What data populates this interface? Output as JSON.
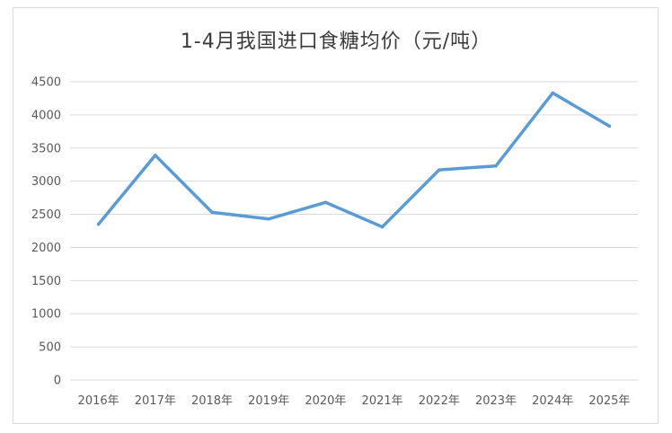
{
  "chart_data": {
    "type": "line",
    "title": "1-4月我国进口食糖均价（元/吨）",
    "xlabel": "",
    "ylabel": "",
    "categories": [
      "2016年",
      "2017年",
      "2018年",
      "2019年",
      "2020年",
      "2021年",
      "2022年",
      "2023年",
      "2024年",
      "2025年"
    ],
    "series": [
      {
        "values": [
          2350,
          3390,
          2530,
          2430,
          2680,
          2310,
          3170,
          3230,
          4330,
          3830
        ]
      }
    ],
    "ylim": [
      0,
      4500
    ],
    "yticks": [
      0,
      500,
      1000,
      1500,
      2000,
      2500,
      3000,
      3500,
      4000,
      4500
    ],
    "grid": true,
    "legend": "none",
    "line_color": "#5b9bd5",
    "grid_color": "#d9d9d9"
  }
}
